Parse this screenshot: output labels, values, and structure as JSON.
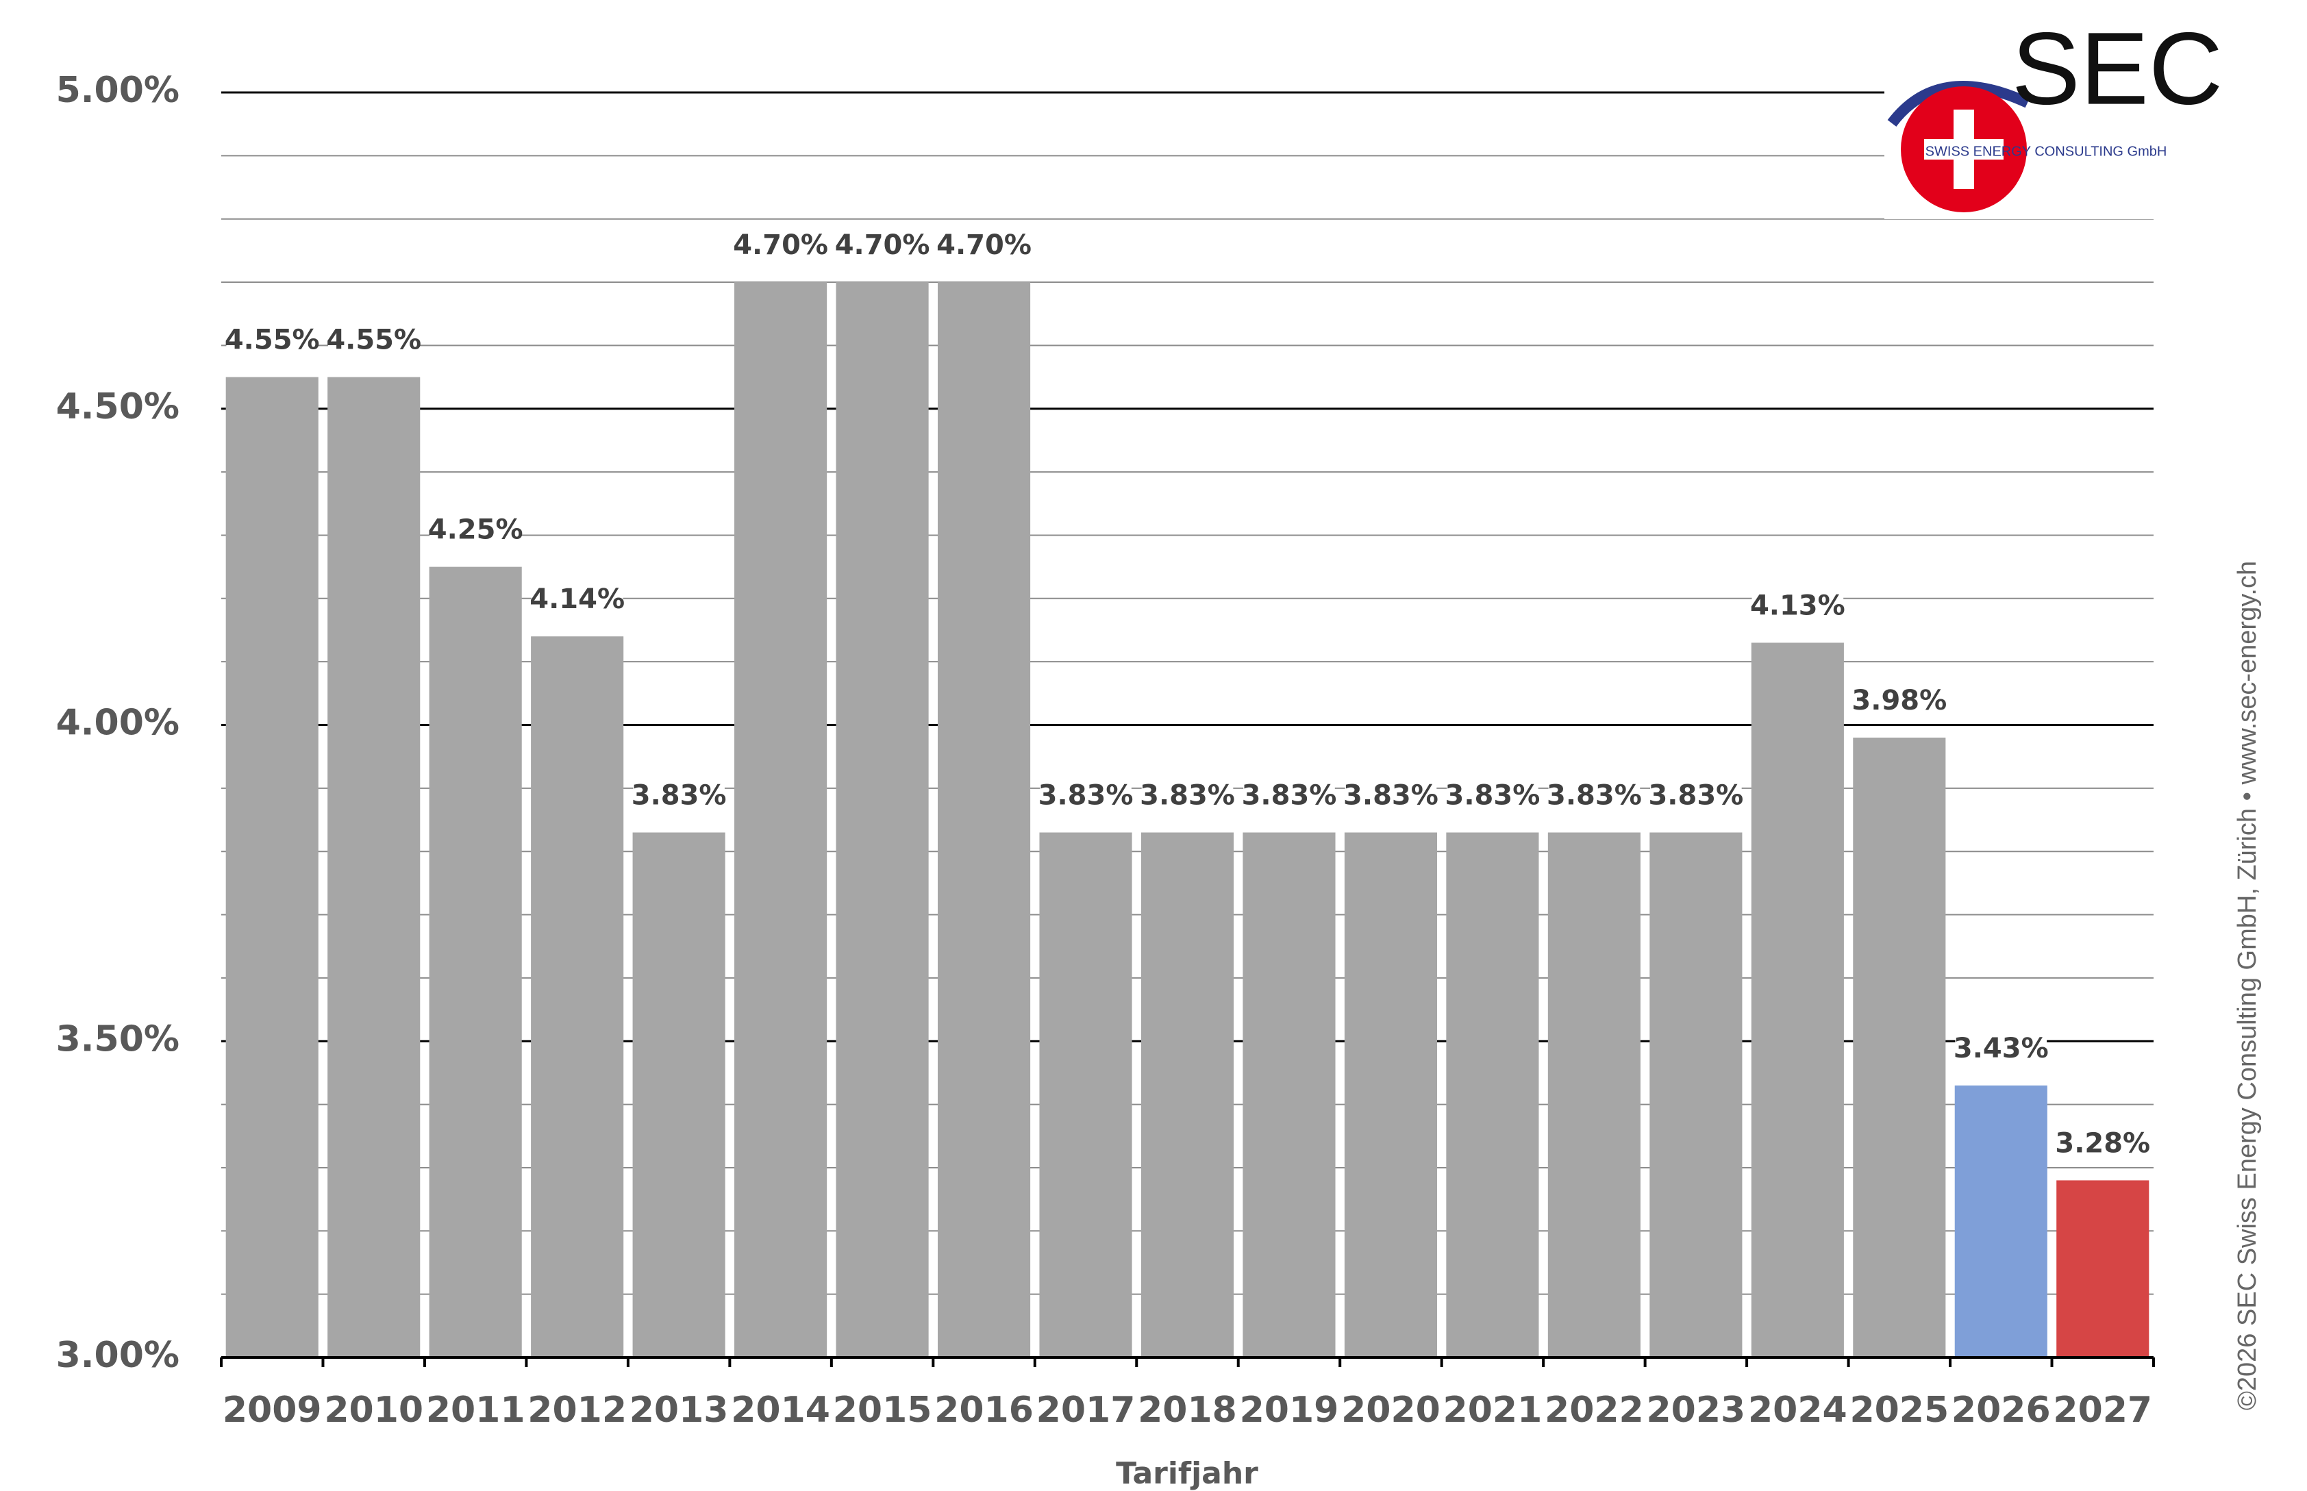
{
  "chart_data": {
    "type": "bar",
    "xlabel": "Tarifjahr",
    "categories": [
      "2009",
      "2010",
      "2011",
      "2012",
      "2013",
      "2014",
      "2015",
      "2016",
      "2017",
      "2018",
      "2019",
      "2020",
      "2021",
      "2022",
      "2023",
      "2024",
      "2025",
      "2026",
      "2027"
    ],
    "values": [
      4.55,
      4.55,
      4.25,
      4.14,
      3.83,
      4.7,
      4.7,
      4.7,
      3.83,
      3.83,
      3.83,
      3.83,
      3.83,
      3.83,
      3.83,
      4.13,
      3.98,
      3.43,
      3.28
    ],
    "value_labels": [
      "4.55%",
      "4.55%",
      "4.25%",
      "4.14%",
      "3.83%",
      "4.70%",
      "4.70%",
      "4.70%",
      "3.83%",
      "3.83%",
      "3.83%",
      "3.83%",
      "3.83%",
      "3.83%",
      "3.83%",
      "4.13%",
      "3.98%",
      "3.43%",
      "3.28%"
    ],
    "colors": [
      "#a6a6a6",
      "#a6a6a6",
      "#a6a6a6",
      "#a6a6a6",
      "#a6a6a6",
      "#a6a6a6",
      "#a6a6a6",
      "#a6a6a6",
      "#a6a6a6",
      "#a6a6a6",
      "#a6a6a6",
      "#a6a6a6",
      "#a6a6a6",
      "#a6a6a6",
      "#a6a6a6",
      "#a6a6a6",
      "#a6a6a6",
      "#7f9fd8",
      "#d64545"
    ],
    "ylim": [
      3,
      5
    ],
    "yticks": [
      {
        "value": 3,
        "label": "3.00%"
      },
      {
        "value": 3.5,
        "label": "3.50%"
      },
      {
        "value": 4,
        "label": "4.00%"
      },
      {
        "value": 4.5,
        "label": "4.50%"
      },
      {
        "value": 5,
        "label": "5.00%"
      }
    ],
    "yminorticks": [
      3.1,
      3.2,
      3.3,
      3.4,
      3.6,
      3.7,
      3.8,
      3.9,
      4.1,
      4.2,
      4.3,
      4.4,
      4.6,
      4.7,
      4.8,
      4.9
    ],
    "grid": true,
    "logo_title": "SEC",
    "logo_subtitle": "SWISS ENERGY CONSULTING GmbH",
    "credit": "©2026 SEC Swiss Energy Consulting GmbH, Zürich • www.sec-energy.ch"
  }
}
